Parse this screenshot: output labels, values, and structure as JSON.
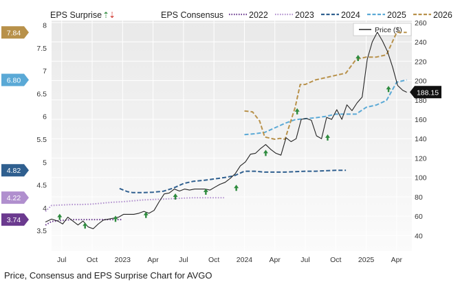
{
  "caption": "Price, Consensus and EPS Surprise Chart for AVGO",
  "chart_data": {
    "type": "line",
    "legend": {
      "surprise_label": "EPS Surprise",
      "consensus_label": "EPS Consensus",
      "price_label": "Price ($)",
      "placement": "top"
    },
    "x_tick_labels": [
      "Jul",
      "Oct",
      "2023",
      "Apr",
      "Jul",
      "Oct",
      "2024",
      "Apr",
      "Jul",
      "Oct",
      "2025",
      "Apr"
    ],
    "x_ticks_t": [
      1.0,
      4.0,
      7.0,
      10.0,
      13.0,
      16.0,
      19.0,
      22.0,
      25.0,
      28.0,
      31.0,
      34.0
    ],
    "xlim_t": [
      0,
      35.5
    ],
    "left_axis": {
      "ylim": [
        3.05,
        8.1
      ],
      "ticks": [
        3.5,
        4,
        4.5,
        5,
        5.5,
        6,
        6.5,
        7,
        7.5,
        8
      ]
    },
    "right_axis": {
      "ylim": [
        24,
        262
      ],
      "ticks": [
        40,
        60,
        80,
        100,
        120,
        140,
        160,
        180,
        200,
        220,
        240,
        260
      ]
    },
    "grid": true,
    "series": [
      {
        "name": "2022",
        "color": "#6b3a8f",
        "style": "dotted",
        "t": [
          -0.6,
          0,
          1,
          2,
          3,
          4,
          5,
          6,
          7
        ],
        "values": [
          3.62,
          3.7,
          3.72,
          3.74,
          3.74,
          3.74,
          3.74,
          3.74,
          3.74
        ]
      },
      {
        "name": "2023",
        "color": "#b08fce",
        "style": "dotted",
        "t": [
          -0.6,
          0,
          1,
          2,
          3,
          4,
          5,
          6,
          7,
          8,
          9,
          10,
          11,
          12,
          13,
          14,
          15,
          16,
          17
        ],
        "values": [
          3.92,
          4.05,
          4.06,
          4.07,
          4.07,
          4.08,
          4.1,
          4.12,
          4.13,
          4.15,
          4.17,
          4.18,
          4.19,
          4.2,
          4.21,
          4.22,
          4.22,
          4.22,
          4.22
        ]
      },
      {
        "name": "2024",
        "color": "#2f5f8f",
        "style": "dashed",
        "t": [
          6.7,
          7.5,
          8,
          9,
          10,
          11,
          12,
          13,
          14,
          15,
          16,
          17,
          18,
          19,
          20,
          21,
          22,
          23,
          24,
          25,
          26,
          27,
          28,
          29
        ],
        "values": [
          4.42,
          4.35,
          4.33,
          4.33,
          4.34,
          4.36,
          4.43,
          4.53,
          4.58,
          4.6,
          4.63,
          4.66,
          4.7,
          4.8,
          4.8,
          4.78,
          4.78,
          4.78,
          4.79,
          4.8,
          4.8,
          4.81,
          4.82,
          4.82
        ]
      },
      {
        "name": "2025",
        "color": "#5aa9d6",
        "style": "dashed",
        "t": [
          19,
          20,
          21,
          22,
          23,
          24,
          25,
          26,
          27,
          28,
          29,
          30,
          31,
          32,
          33,
          34,
          35
        ],
        "values": [
          5.6,
          5.62,
          5.65,
          5.75,
          5.85,
          5.93,
          5.95,
          5.97,
          6.0,
          6.05,
          6.05,
          6.05,
          6.2,
          6.25,
          6.35,
          6.75,
          6.8
        ]
      },
      {
        "name": "2026",
        "color": "#b8914a",
        "style": "dashed",
        "t": [
          19,
          19.8,
          20.5,
          21,
          22,
          22.5,
          23,
          24,
          24.5,
          25,
          26,
          27,
          28,
          29,
          30,
          31,
          32,
          33,
          34,
          35
        ],
        "values": [
          6.12,
          6.1,
          5.9,
          5.55,
          5.5,
          5.52,
          5.5,
          6.2,
          6.7,
          6.7,
          6.8,
          6.85,
          6.9,
          6.95,
          7.25,
          7.3,
          7.3,
          7.35,
          7.84,
          7.84
        ]
      },
      {
        "name": "Price ($)",
        "color": "#222222",
        "style": "solid",
        "axis": "right",
        "t": [
          -0.6,
          0,
          0.6,
          1.1,
          1.6,
          2.1,
          2.6,
          3.1,
          3.6,
          4.1,
          4.6,
          5.1,
          5.6,
          6.1,
          6.6,
          7.1,
          7.6,
          8.1,
          8.6,
          9.1,
          9.6,
          10.1,
          10.6,
          11.1,
          11.6,
          12.1,
          12.6,
          13.1,
          13.6,
          14.1,
          14.6,
          15.1,
          15.6,
          16.1,
          16.6,
          17.1,
          17.6,
          18.1,
          18.6,
          19.1,
          19.6,
          20.1,
          20.6,
          21.1,
          21.6,
          22.1,
          22.6,
          23.1,
          23.6,
          24.1,
          24.6,
          25.1,
          25.6,
          26.1,
          26.6,
          27.1,
          27.6,
          28.1,
          28.6,
          29.1,
          29.6,
          30.1,
          30.6,
          31.1,
          31.6,
          32.1,
          32.6,
          33.1,
          33.6,
          34.1,
          34.6,
          35
        ],
        "values": [
          54,
          57,
          55,
          52,
          59,
          55,
          51,
          55,
          49,
          47,
          52,
          56,
          57,
          58,
          59,
          62,
          62,
          62,
          63,
          65,
          63,
          66,
          75,
          83,
          84,
          88,
          86,
          88,
          87,
          88,
          88,
          88,
          87,
          90,
          93,
          95,
          99,
          104,
          112,
          116,
          124,
          125,
          130,
          134,
          129,
          125,
          123,
          141,
          137,
          140,
          160,
          161,
          159,
          143,
          140,
          162,
          160,
          170,
          160,
          175,
          169,
          177,
          183,
          222,
          240,
          250,
          241,
          230,
          214,
          195,
          190,
          188
        ]
      }
    ],
    "eps_surprise_markers": {
      "color": "#2e8b3e",
      "t": [
        0.8,
        3.3,
        6.3,
        9.3,
        12.2,
        15.2,
        18.2,
        21.1,
        24.2,
        27.2,
        30.2,
        33.2
      ],
      "price": [
        59,
        50,
        57,
        61,
        80,
        85,
        89,
        125,
        168,
        141,
        223,
        191
      ]
    },
    "left_badges": [
      {
        "label": "7.84",
        "value": 7.84,
        "color": "#b8914a"
      },
      {
        "label": "6.80",
        "value": 6.8,
        "color": "#5aa9d6"
      },
      {
        "label": "4.82",
        "value": 4.82,
        "color": "#2f5f8f"
      },
      {
        "label": "4.22",
        "value": 4.22,
        "color": "#b08fce"
      },
      {
        "label": "3.74",
        "value": 3.74,
        "color": "#6b3a8f"
      }
    ],
    "right_badge": {
      "label": "188.15",
      "value": 188.15,
      "color": "#111111"
    }
  }
}
